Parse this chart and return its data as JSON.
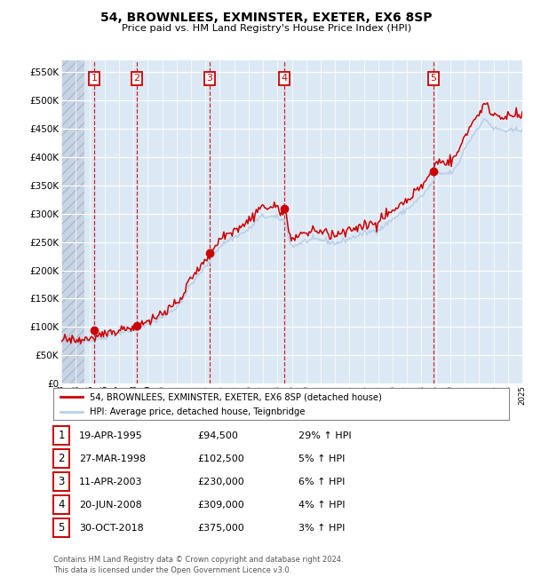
{
  "title": "54, BROWNLEES, EXMINSTER, EXETER, EX6 8SP",
  "subtitle": "Price paid vs. HM Land Registry's House Price Index (HPI)",
  "ylim": [
    0,
    570000
  ],
  "yticks": [
    0,
    50000,
    100000,
    150000,
    200000,
    250000,
    300000,
    350000,
    400000,
    450000,
    500000,
    550000
  ],
  "ytick_labels": [
    "£0",
    "£50K",
    "£100K",
    "£150K",
    "£200K",
    "£250K",
    "£300K",
    "£350K",
    "£400K",
    "£450K",
    "£500K",
    "£550K"
  ],
  "x_start_year": 1993,
  "x_end_year": 2025,
  "hpi_color": "#b8d0e8",
  "price_color": "#cc0000",
  "bg_color": "#dce9f5",
  "vline_color": "#cc0000",
  "sales": [
    {
      "date": 1995.3,
      "price": 94500,
      "label": "1"
    },
    {
      "date": 1998.24,
      "price": 102500,
      "label": "2"
    },
    {
      "date": 2003.28,
      "price": 230000,
      "label": "3"
    },
    {
      "date": 2008.47,
      "price": 309000,
      "label": "4"
    },
    {
      "date": 2018.83,
      "price": 375000,
      "label": "5"
    }
  ],
  "legend_entries": [
    "54, BROWNLEES, EXMINSTER, EXETER, EX6 8SP (detached house)",
    "HPI: Average price, detached house, Teignbridge"
  ],
  "table_data": [
    {
      "num": "1",
      "date": "19-APR-1995",
      "price": "£94,500",
      "hpi": "29% ↑ HPI"
    },
    {
      "num": "2",
      "date": "27-MAR-1998",
      "price": "£102,500",
      "hpi": "5% ↑ HPI"
    },
    {
      "num": "3",
      "date": "11-APR-2003",
      "price": "£230,000",
      "hpi": "6% ↑ HPI"
    },
    {
      "num": "4",
      "date": "20-JUN-2008",
      "price": "£309,000",
      "hpi": "4% ↑ HPI"
    },
    {
      "num": "5",
      "date": "30-OCT-2018",
      "price": "£375,000",
      "hpi": "3% ↑ HPI"
    }
  ],
  "footer": "Contains HM Land Registry data © Crown copyright and database right 2024.\nThis data is licensed under the Open Government Licence v3.0."
}
